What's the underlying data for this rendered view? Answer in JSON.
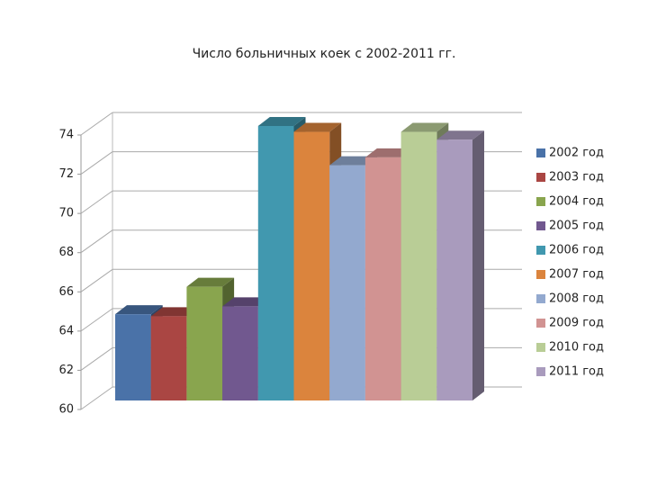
{
  "chart_data": {
    "type": "bar3d",
    "title": "Число больничных коек с 2002-2011 гг.",
    "series": [
      {
        "name": "2002 год",
        "color": "#4a72a8",
        "values": [
          64.4
        ]
      },
      {
        "name": "2003 год",
        "color": "#aa4643",
        "values": [
          64.3
        ]
      },
      {
        "name": "2004 год",
        "color": "#89a54e",
        "values": [
          65.8
        ]
      },
      {
        "name": "2005 год",
        "color": "#71588f",
        "values": [
          64.8
        ]
      },
      {
        "name": "2006 год",
        "color": "#4198af",
        "values": [
          74
        ]
      },
      {
        "name": "2007 год",
        "color": "#db843d",
        "values": [
          73.7
        ]
      },
      {
        "name": "2008 год",
        "color": "#93a9cf",
        "values": [
          72
        ]
      },
      {
        "name": "2009 год",
        "color": "#d19392",
        "values": [
          72.4
        ]
      },
      {
        "name": "2010 год",
        "color": "#b9cd96",
        "values": [
          73.7
        ]
      },
      {
        "name": "2011 год",
        "color": "#a99bbd",
        "values": [
          73.3
        ]
      }
    ],
    "ylim": [
      60,
      74
    ],
    "yticks": [
      60,
      62,
      64,
      66,
      68,
      70,
      72,
      74
    ],
    "grid": true,
    "legend": "right"
  }
}
